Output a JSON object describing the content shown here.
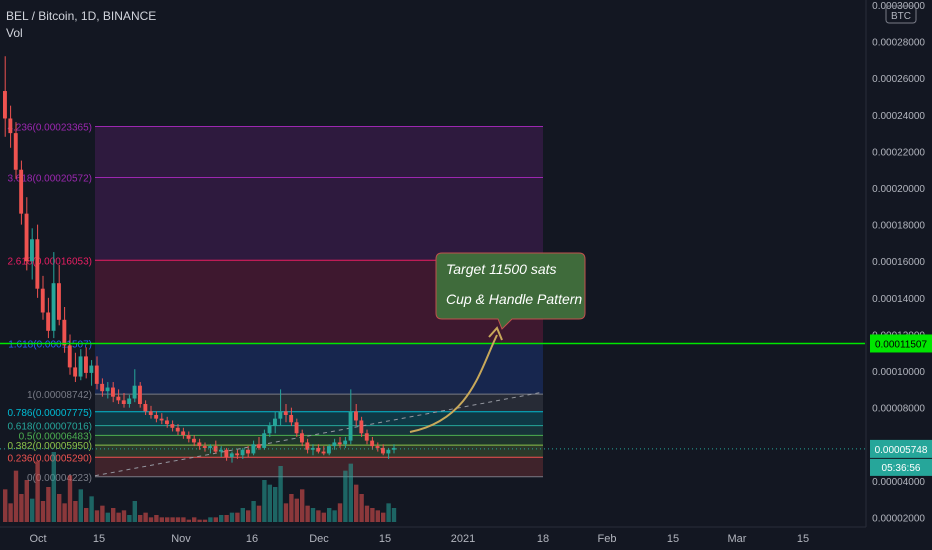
{
  "header": {
    "title": "BEL / Bitcoin, 1D, BINANCE",
    "vol_label": "Vol"
  },
  "currency_badge": "BTC",
  "callout": {
    "line1": "Target 11500 sats",
    "line2": "Cup & Handle Pattern"
  },
  "colors": {
    "background": "#131722",
    "up": "#26a69a",
    "down": "#ef5350",
    "target_line": "#00e600",
    "fib_text": "#d1d4dc",
    "callout_bg": "#3f6b3b",
    "callout_border": "#c0504d",
    "arrow": "#c8a85a"
  },
  "price_labels": {
    "target": "0.00011507",
    "current": "0.00005748",
    "countdown": "05:36:56"
  },
  "chart_data": {
    "type": "candlestick",
    "title": "BEL / Bitcoin, 1D, BINANCE",
    "y_axis": {
      "ticks": [
        "0.00002000",
        "0.00004000",
        "0.00006000",
        "0.00008000",
        "0.00010000",
        "0.00012000",
        "0.00014000",
        "0.00016000",
        "0.00018000",
        "0.00020000",
        "0.00022000",
        "0.00024000",
        "0.00026000",
        "0.00028000",
        "0.00030000"
      ],
      "min": 1.48e-05,
      "max": 0.0003
    },
    "x_axis": {
      "ticks": [
        "Oct",
        "15",
        "Nov",
        "16",
        "Dec",
        "15",
        "2021",
        "18",
        "Feb",
        "15",
        "Mar",
        "15"
      ]
    },
    "fibonacci_levels": [
      {
        "ratio": "4.236",
        "price": "0.00023365",
        "color": "#9c27b0"
      },
      {
        "ratio": "3.618",
        "price": "0.00020572",
        "color": "#9c27b0"
      },
      {
        "ratio": "2.618",
        "price": "0.00016053",
        "color": "#e91e63"
      },
      {
        "ratio": "1.618",
        "price": "0.00011507",
        "color": "#2962ff"
      },
      {
        "ratio": "1",
        "price": "0.00008742",
        "color": "#787b86"
      },
      {
        "ratio": "0.786",
        "price": "0.00007775",
        "color": "#00bcd4"
      },
      {
        "ratio": "0.618",
        "price": "0.00007016",
        "color": "#26a69a"
      },
      {
        "ratio": "0.5",
        "price": "0.00006483",
        "color": "#4caf50"
      },
      {
        "ratio": "0.382",
        "price": "0.00005950",
        "color": "#8bc34a"
      },
      {
        "ratio": "0.236",
        "price": "0.00005290",
        "color": "#ef5350"
      },
      {
        "ratio": "0",
        "price": "0.00004223",
        "color": "#787b86"
      }
    ],
    "target_price": 0.00011507,
    "last_price": 5.748e-05,
    "candles": [
      {
        "o": 0.000253,
        "h": 0.000272,
        "l": 0.000228,
        "c": 0.000238
      },
      {
        "o": 0.000238,
        "h": 0.000245,
        "l": 0.000222,
        "c": 0.00023
      },
      {
        "o": 0.00023,
        "h": 0.000236,
        "l": 0.000205,
        "c": 0.00021
      },
      {
        "o": 0.00021,
        "h": 0.000215,
        "l": 0.00018,
        "c": 0.000186
      },
      {
        "o": 0.000186,
        "h": 0.000195,
        "l": 0.000155,
        "c": 0.00016
      },
      {
        "o": 0.00016,
        "h": 0.000178,
        "l": 0.00015,
        "c": 0.000172
      },
      {
        "o": 0.000172,
        "h": 0.00018,
        "l": 0.00014,
        "c": 0.000145
      },
      {
        "o": 0.000145,
        "h": 0.000152,
        "l": 0.000128,
        "c": 0.000132
      },
      {
        "o": 0.000132,
        "h": 0.00014,
        "l": 0.000118,
        "c": 0.000122
      },
      {
        "o": 0.000122,
        "h": 0.000165,
        "l": 0.000118,
        "c": 0.000148
      },
      {
        "o": 0.000148,
        "h": 0.000158,
        "l": 0.000125,
        "c": 0.000128
      },
      {
        "o": 0.000128,
        "h": 0.000135,
        "l": 0.00011,
        "c": 0.000114
      },
      {
        "o": 0.000114,
        "h": 0.00012,
        "l": 9.8e-05,
        "c": 0.000102
      },
      {
        "o": 0.000102,
        "h": 0.00011,
        "l": 9.4e-05,
        "c": 9.7e-05
      },
      {
        "o": 9.7e-05,
        "h": 0.000112,
        "l": 9.5e-05,
        "c": 0.000108
      },
      {
        "o": 0.000108,
        "h": 0.000113,
        "l": 9.6e-05,
        "c": 9.9e-05
      },
      {
        "o": 9.9e-05,
        "h": 0.000106,
        "l": 9.2e-05,
        "c": 0.000103
      },
      {
        "o": 0.000103,
        "h": 0.000108,
        "l": 9e-05,
        "c": 9.3e-05
      },
      {
        "o": 9.3e-05,
        "h": 9.6e-05,
        "l": 8.6e-05,
        "c": 8.9e-05
      },
      {
        "o": 8.9e-05,
        "h": 9.4e-05,
        "l": 8.5e-05,
        "c": 9.1e-05
      },
      {
        "o": 9.1e-05,
        "h": 9.4e-05,
        "l": 8.3e-05,
        "c": 8.6e-05
      },
      {
        "o": 8.6e-05,
        "h": 9e-05,
        "l": 8.2e-05,
        "c": 8.4e-05
      },
      {
        "o": 8.4e-05,
        "h": 8.8e-05,
        "l": 8e-05,
        "c": 8.2e-05
      },
      {
        "o": 8.2e-05,
        "h": 8.7e-05,
        "l": 8e-05,
        "c": 8.5e-05
      },
      {
        "o": 8.5e-05,
        "h": 0.000101,
        "l": 8.3e-05,
        "c": 9.2e-05
      },
      {
        "o": 9.2e-05,
        "h": 9.4e-05,
        "l": 8e-05,
        "c": 8.2e-05
      },
      {
        "o": 8.2e-05,
        "h": 8.4e-05,
        "l": 7.6e-05,
        "c": 7.8e-05
      },
      {
        "o": 7.8e-05,
        "h": 8.1e-05,
        "l": 7.4e-05,
        "c": 7.6e-05
      },
      {
        "o": 7.6e-05,
        "h": 7.8e-05,
        "l": 7.2e-05,
        "c": 7.4e-05
      },
      {
        "o": 7.4e-05,
        "h": 7.7e-05,
        "l": 7.1e-05,
        "c": 7.3e-05
      },
      {
        "o": 7.3e-05,
        "h": 7.5e-05,
        "l": 6.9e-05,
        "c": 7.1e-05
      },
      {
        "o": 7.1e-05,
        "h": 7.3e-05,
        "l": 6.7e-05,
        "c": 6.9e-05
      },
      {
        "o": 6.9e-05,
        "h": 7.1e-05,
        "l": 6.5e-05,
        "c": 6.7e-05
      },
      {
        "o": 6.7e-05,
        "h": 6.9e-05,
        "l": 6.3e-05,
        "c": 6.5e-05
      },
      {
        "o": 6.5e-05,
        "h": 6.7e-05,
        "l": 6.1e-05,
        "c": 6.3e-05
      },
      {
        "o": 6.3e-05,
        "h": 6.5e-05,
        "l": 5.9e-05,
        "c": 6.1e-05
      },
      {
        "o": 6.1e-05,
        "h": 6.3e-05,
        "l": 5.7e-05,
        "c": 5.9e-05
      },
      {
        "o": 5.9e-05,
        "h": 6.1e-05,
        "l": 5.6e-05,
        "c": 5.8e-05
      },
      {
        "o": 5.8e-05,
        "h": 6e-05,
        "l": 5.5e-05,
        "c": 5.9e-05
      },
      {
        "o": 5.9e-05,
        "h": 6.2e-05,
        "l": 5.5e-05,
        "c": 5.6e-05
      },
      {
        "o": 5.6e-05,
        "h": 5.9e-05,
        "l": 5.3e-05,
        "c": 5.7e-05
      },
      {
        "o": 5.7e-05,
        "h": 5.8e-05,
        "l": 5.1e-05,
        "c": 5.3e-05
      },
      {
        "o": 5.3e-05,
        "h": 5.6e-05,
        "l": 5e-05,
        "c": 5.5e-05
      },
      {
        "o": 5.5e-05,
        "h": 5.7e-05,
        "l": 5.2e-05,
        "c": 5.4e-05
      },
      {
        "o": 5.4e-05,
        "h": 5.8e-05,
        "l": 5.2e-05,
        "c": 5.7e-05
      },
      {
        "o": 5.7e-05,
        "h": 5.9e-05,
        "l": 5.3e-05,
        "c": 5.5e-05
      },
      {
        "o": 5.5e-05,
        "h": 6.2e-05,
        "l": 5.4e-05,
        "c": 6e-05
      },
      {
        "o": 6e-05,
        "h": 6.4e-05,
        "l": 5.7e-05,
        "c": 5.8e-05
      },
      {
        "o": 5.8e-05,
        "h": 6.8e-05,
        "l": 5.7e-05,
        "c": 6.6e-05
      },
      {
        "o": 6.6e-05,
        "h": 7.2e-05,
        "l": 6.4e-05,
        "c": 7e-05
      },
      {
        "o": 7e-05,
        "h": 7.8e-05,
        "l": 6.6e-05,
        "c": 7.4e-05
      },
      {
        "o": 7.4e-05,
        "h": 9e-05,
        "l": 7e-05,
        "c": 7.8e-05
      },
      {
        "o": 7.8e-05,
        "h": 8.2e-05,
        "l": 7.2e-05,
        "c": 7.6e-05
      },
      {
        "o": 7.6e-05,
        "h": 8e-05,
        "l": 7e-05,
        "c": 7.2e-05
      },
      {
        "o": 7.2e-05,
        "h": 7.4e-05,
        "l": 6.4e-05,
        "c": 6.6e-05
      },
      {
        "o": 6.6e-05,
        "h": 6.8e-05,
        "l": 5.9e-05,
        "c": 6.1e-05
      },
      {
        "o": 6.1e-05,
        "h": 6.3e-05,
        "l": 5.5e-05,
        "c": 5.7e-05
      },
      {
        "o": 5.7e-05,
        "h": 6e-05,
        "l": 5.4e-05,
        "c": 5.8e-05
      },
      {
        "o": 5.8e-05,
        "h": 6e-05,
        "l": 5.5e-05,
        "c": 5.6e-05
      },
      {
        "o": 5.6e-05,
        "h": 5.9e-05,
        "l": 5.4e-05,
        "c": 5.5e-05
      },
      {
        "o": 5.5e-05,
        "h": 6e-05,
        "l": 5.4e-05,
        "c": 5.9e-05
      },
      {
        "o": 5.9e-05,
        "h": 6.3e-05,
        "l": 5.7e-05,
        "c": 6.1e-05
      },
      {
        "o": 6.1e-05,
        "h": 6.4e-05,
        "l": 5.8e-05,
        "c": 6e-05
      },
      {
        "o": 6e-05,
        "h": 6.4e-05,
        "l": 5.8e-05,
        "c": 6.2e-05
      },
      {
        "o": 6.2e-05,
        "h": 9e-05,
        "l": 6e-05,
        "c": 7.8e-05
      },
      {
        "o": 7.8e-05,
        "h": 8.2e-05,
        "l": 7e-05,
        "c": 7.3e-05
      },
      {
        "o": 7.3e-05,
        "h": 7.5e-05,
        "l": 6.4e-05,
        "c": 6.6e-05
      },
      {
        "o": 6.6e-05,
        "h": 6.8e-05,
        "l": 6e-05,
        "c": 6.2e-05
      },
      {
        "o": 6.2e-05,
        "h": 6.4e-05,
        "l": 5.7e-05,
        "c": 5.9e-05
      },
      {
        "o": 5.9e-05,
        "h": 6.1e-05,
        "l": 5.6e-05,
        "c": 5.8e-05
      },
      {
        "o": 5.8e-05,
        "h": 6e-05,
        "l": 5.4e-05,
        "c": 5.5e-05
      },
      {
        "o": 5.5e-05,
        "h": 5.8e-05,
        "l": 5.2e-05,
        "c": 5.7e-05
      },
      {
        "o": 5.7e-05,
        "h": 6e-05,
        "l": 5.5e-05,
        "c": 5.8e-05
      }
    ],
    "volume": [
      14,
      8,
      22,
      12,
      18,
      10,
      26,
      9,
      15,
      30,
      12,
      8,
      20,
      9,
      14,
      6,
      11,
      5,
      7,
      4,
      6,
      4,
      5,
      3,
      9,
      3,
      4,
      2,
      3,
      2,
      2,
      2,
      2,
      2,
      1,
      2,
      1,
      1,
      2,
      2,
      3,
      3,
      4,
      4,
      6,
      5,
      9,
      7,
      18,
      16,
      15,
      24,
      8,
      12,
      10,
      14,
      7,
      6,
      5,
      4,
      6,
      5,
      8,
      22,
      25,
      16,
      12,
      7,
      6,
      5,
      4,
      8,
      6
    ]
  }
}
